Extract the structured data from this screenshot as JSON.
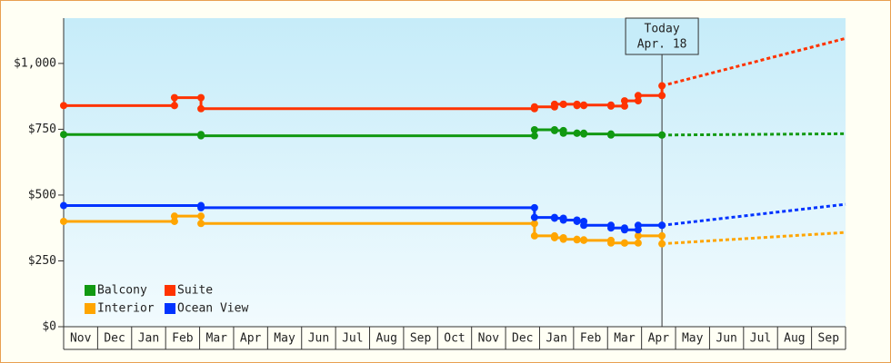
{
  "chart_data": {
    "type": "step-line",
    "categories": [
      "Nov",
      "Dec",
      "Jan",
      "Feb",
      "Mar",
      "Apr",
      "May",
      "Jun",
      "Jul",
      "Aug",
      "Sep",
      "Oct",
      "Nov",
      "Dec",
      "Jan",
      "Feb",
      "Mar",
      "Apr",
      "May",
      "Jun",
      "Jul",
      "Aug",
      "Sep"
    ],
    "xlim": [
      0,
      23
    ],
    "ylim": [
      0,
      1172
    ],
    "yticks": [
      {
        "value": 0,
        "label": "$0"
      },
      {
        "value": 250,
        "label": "$250"
      },
      {
        "value": 500,
        "label": "$500"
      },
      {
        "value": 750,
        "label": "$750"
      },
      {
        "value": 1000,
        "label": "$1,000"
      }
    ],
    "annotation": {
      "x": 17.6,
      "lines": [
        "Today",
        "Apr. 18"
      ]
    },
    "series": [
      {
        "name": "Balcony",
        "color": "#119911",
        "x": [
          0,
          4.04,
          13.85,
          14.44,
          14.7,
          15.1,
          15.3,
          16.1,
          17.6
        ],
        "values": [
          730,
          725,
          748,
          745,
          735,
          735,
          732,
          728,
          728
        ],
        "forecast": {
          "x": [
            17.6,
            23
          ],
          "values": [
            728,
            733
          ]
        }
      },
      {
        "name": "Suite",
        "color": "#ff3300",
        "x": [
          0,
          3.26,
          4.04,
          13.85,
          14.44,
          14.7,
          15.1,
          15.3,
          16.1,
          16.5,
          16.9,
          17.6
        ],
        "values": [
          840,
          870,
          828,
          835,
          845,
          845,
          840,
          842,
          838,
          858,
          878,
          915
        ],
        "forecast": {
          "x": [
            17.6,
            23
          ],
          "values": [
            915,
            1095
          ]
        }
      },
      {
        "name": "Interior",
        "color": "#ffa500",
        "x": [
          0,
          3.26,
          4.04,
          13.85,
          14.44,
          14.7,
          15.1,
          15.3,
          16.1,
          16.5,
          16.9,
          17.6
        ],
        "values": [
          400,
          420,
          392,
          345,
          338,
          332,
          330,
          328,
          318,
          318,
          345,
          315
        ],
        "forecast": {
          "x": [
            17.6,
            23
          ],
          "values": [
            315,
            358
          ]
        }
      },
      {
        "name": "Ocean View",
        "color": "#0033ff",
        "x": [
          0,
          4.04,
          13.85,
          14.44,
          14.7,
          15.1,
          15.3,
          16.1,
          16.5,
          16.9,
          17.6
        ],
        "values": [
          460,
          452,
          415,
          412,
          405,
          400,
          385,
          375,
          368,
          385,
          385
        ],
        "forecast": {
          "x": [
            17.6,
            23
          ],
          "values": [
            385,
            465
          ]
        }
      }
    ]
  }
}
